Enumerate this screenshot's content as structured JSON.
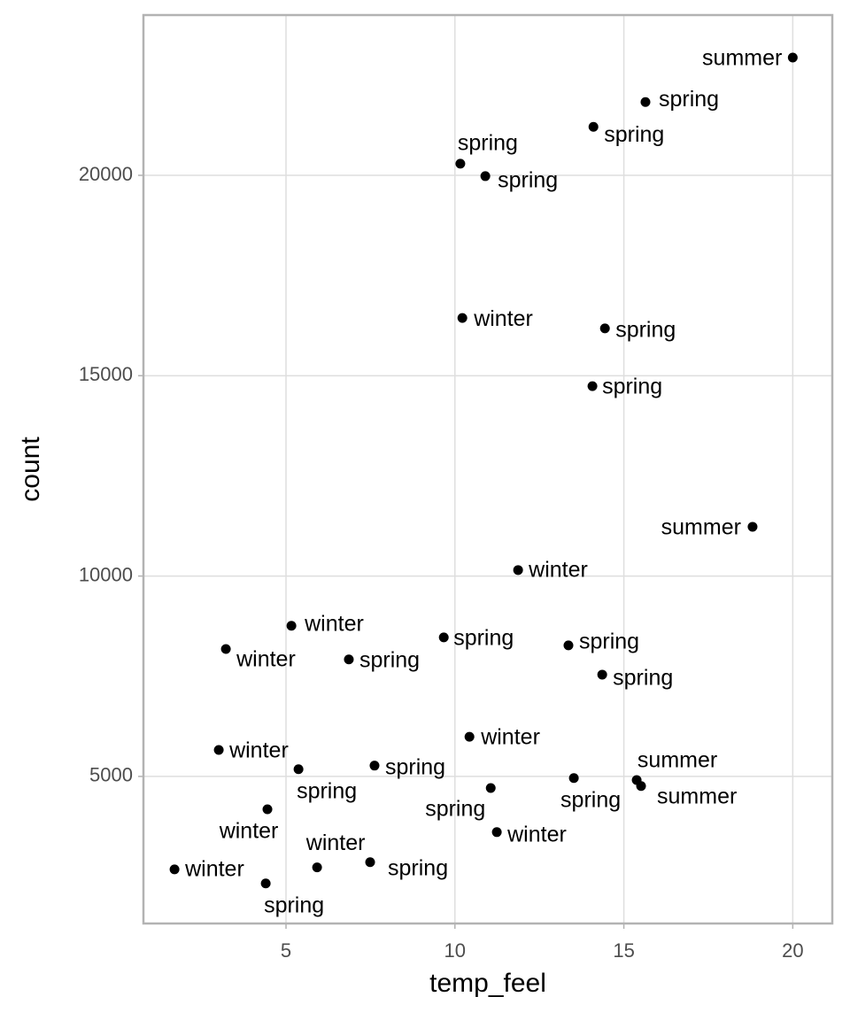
{
  "chart_data": {
    "type": "scatter",
    "xlabel": "temp_feel",
    "ylabel": "count",
    "x": [
      20.0,
      15.64,
      14.1,
      10.16,
      10.9,
      10.22,
      14.44,
      14.07,
      18.81,
      11.87,
      5.16,
      9.67,
      3.22,
      6.86,
      13.36,
      14.36,
      10.43,
      3.01,
      5.37,
      7.62,
      11.06,
      13.52,
      15.38,
      15.51,
      4.45,
      11.24,
      1.7,
      5.92,
      7.49,
      4.4
    ],
    "values": [
      22940,
      21830,
      21210,
      20290,
      19980,
      16440,
      16180,
      14740,
      11230,
      10150,
      8760,
      8470,
      8180,
      7920,
      8270,
      7540,
      5990,
      5660,
      5180,
      5270,
      4710,
      4960,
      4910,
      4760,
      4180,
      3610,
      2680,
      2730,
      2860,
      2330
    ],
    "labels": [
      "summer",
      "spring",
      "spring",
      "spring",
      "spring",
      "winter",
      "spring",
      "spring",
      "summer",
      "winter",
      "winter",
      "spring",
      "winter",
      "spring",
      "spring",
      "spring",
      "winter",
      "winter",
      "spring",
      "spring",
      "spring",
      "spring",
      "summer",
      "summer",
      "winter",
      "winter",
      "winter",
      "winter",
      "spring",
      "spring"
    ],
    "color": "#000000",
    "xlim": [
      0.78,
      21.17
    ],
    "xticks": [
      5,
      10,
      15,
      20
    ],
    "ylim": [
      1330,
      24000
    ],
    "yticks": [
      5000,
      10000,
      15000,
      20000
    ],
    "grid": true
  }
}
